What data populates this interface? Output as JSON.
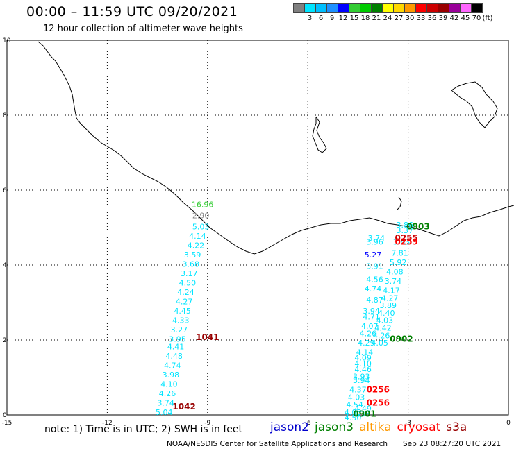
{
  "header": {
    "title": "00:00 – 11:59 UTC 09/20/2021",
    "subtitle": "12 hour collection of altimeter wave heights"
  },
  "color_scale": {
    "unit_label": "(ft)",
    "swatches": [
      {
        "color": "#808080",
        "label": ""
      },
      {
        "color": "#00e5ff",
        "label": "3"
      },
      {
        "color": "#00bfff",
        "label": "6"
      },
      {
        "color": "#1e90ff",
        "label": "9"
      },
      {
        "color": "#0000ff",
        "label": "12"
      },
      {
        "color": "#33cc33",
        "label": "15"
      },
      {
        "color": "#00cc00",
        "label": "18"
      },
      {
        "color": "#008000",
        "label": "21"
      },
      {
        "color": "#ffff00",
        "label": "24"
      },
      {
        "color": "#ffd700",
        "label": "27"
      },
      {
        "color": "#ff9900",
        "label": "30"
      },
      {
        "color": "#ff0000",
        "label": "33"
      },
      {
        "color": "#cc0000",
        "label": "36"
      },
      {
        "color": "#990000",
        "label": "39"
      },
      {
        "color": "#990099",
        "label": "42"
      },
      {
        "color": "#ff66ff",
        "label": "45"
      },
      {
        "color": "#000000",
        "label": "70"
      }
    ]
  },
  "axes": {
    "x_ticks": [
      "-15",
      "-12",
      "-9",
      "-6",
      "-3",
      "0"
    ],
    "y_ticks": [
      "10",
      "8",
      "6",
      "4",
      "2",
      "0"
    ],
    "x_range": [
      -15,
      0
    ],
    "y_range": [
      0,
      10
    ]
  },
  "track_values": {
    "west": [
      {
        "lon": -9.15,
        "lat": 5.55,
        "text": "16.96",
        "color": "#33cc33"
      },
      {
        "lon": -9.2,
        "lat": 5.25,
        "text": "2.90",
        "color": "#808080"
      },
      {
        "lon": -9.2,
        "lat": 4.95,
        "text": "5.03",
        "color": "#00e5ff"
      },
      {
        "lon": -9.3,
        "lat": 4.7,
        "text": "4.14",
        "color": "#00e5ff"
      },
      {
        "lon": -9.35,
        "lat": 4.45,
        "text": "4.22",
        "color": "#00e5ff"
      },
      {
        "lon": -9.45,
        "lat": 4.2,
        "text": "3.59",
        "color": "#00e5ff"
      },
      {
        "lon": -9.5,
        "lat": 3.95,
        "text": "3.68",
        "color": "#00e5ff"
      },
      {
        "lon": -9.55,
        "lat": 3.7,
        "text": "3.17",
        "color": "#00e5ff"
      },
      {
        "lon": -9.6,
        "lat": 3.45,
        "text": "4.50",
        "color": "#00e5ff"
      },
      {
        "lon": -9.65,
        "lat": 3.2,
        "text": "4.24",
        "color": "#00e5ff"
      },
      {
        "lon": -9.7,
        "lat": 2.95,
        "text": "4.27",
        "color": "#00e5ff"
      },
      {
        "lon": -9.75,
        "lat": 2.7,
        "text": "4.45",
        "color": "#00e5ff"
      },
      {
        "lon": -9.8,
        "lat": 2.45,
        "text": "4.33",
        "color": "#00e5ff"
      },
      {
        "lon": -9.85,
        "lat": 2.2,
        "text": "3.27",
        "color": "#00e5ff"
      },
      {
        "lon": -9.9,
        "lat": 1.95,
        "text": "3.95",
        "color": "#00e5ff"
      },
      {
        "lon": -9.95,
        "lat": 1.75,
        "text": "4.41",
        "color": "#00e5ff"
      },
      {
        "lon": -10.0,
        "lat": 1.5,
        "text": "4.48",
        "color": "#00e5ff"
      },
      {
        "lon": -10.05,
        "lat": 1.25,
        "text": "4.74",
        "color": "#00e5ff"
      },
      {
        "lon": -10.1,
        "lat": 1.0,
        "text": "3.98",
        "color": "#00e5ff"
      },
      {
        "lon": -10.15,
        "lat": 0.75,
        "text": "4.10",
        "color": "#00e5ff"
      },
      {
        "lon": -10.2,
        "lat": 0.5,
        "text": "4.26",
        "color": "#00e5ff"
      },
      {
        "lon": -10.25,
        "lat": 0.25,
        "text": "3.74",
        "color": "#00e5ff"
      },
      {
        "lon": -10.3,
        "lat": 0.0,
        "text": "5.04",
        "color": "#00e5ff"
      }
    ],
    "east_b": [
      {
        "lon": -3.1,
        "lat": 5.0,
        "text": "3.86",
        "color": "#00e5ff"
      },
      {
        "lon": -3.1,
        "lat": 4.85,
        "text": "3.37",
        "color": "#00e5ff"
      },
      {
        "lon": -3.2,
        "lat": 4.55,
        "text": "3.63",
        "color": "#00e5ff"
      },
      {
        "lon": -3.25,
        "lat": 4.25,
        "text": "7.81",
        "color": "#00e5ff"
      },
      {
        "lon": -3.3,
        "lat": 4.0,
        "text": "5.92",
        "color": "#00e5ff"
      },
      {
        "lon": -3.4,
        "lat": 3.75,
        "text": "4.08",
        "color": "#00e5ff"
      },
      {
        "lon": -3.45,
        "lat": 3.5,
        "text": "3.74",
        "color": "#00e5ff"
      },
      {
        "lon": -3.5,
        "lat": 3.25,
        "text": "4.17",
        "color": "#00e5ff"
      },
      {
        "lon": -3.55,
        "lat": 3.05,
        "text": "4.27",
        "color": "#00e5ff"
      },
      {
        "lon": -3.6,
        "lat": 2.85,
        "text": "3.89",
        "color": "#00e5ff"
      },
      {
        "lon": -3.65,
        "lat": 2.65,
        "text": "4.40",
        "color": "#00e5ff"
      },
      {
        "lon": -3.7,
        "lat": 2.45,
        "text": "4.03",
        "color": "#00e5ff"
      },
      {
        "lon": -3.75,
        "lat": 2.25,
        "text": "4.42",
        "color": "#00e5ff"
      },
      {
        "lon": -3.8,
        "lat": 2.05,
        "text": "4.26",
        "color": "#00e5ff"
      },
      {
        "lon": -3.85,
        "lat": 1.85,
        "text": "4.05",
        "color": "#00e5ff"
      }
    ],
    "east_a": [
      {
        "lon": -3.95,
        "lat": 4.65,
        "text": "3.74",
        "color": "#00e5ff"
      },
      {
        "lon": -4.0,
        "lat": 4.55,
        "text": "3.96",
        "color": "#00e5ff"
      },
      {
        "lon": -4.05,
        "lat": 4.2,
        "text": "5.27",
        "color": "#0000ff"
      },
      {
        "lon": -4.0,
        "lat": 3.9,
        "text": "3.91",
        "color": "#00e5ff"
      },
      {
        "lon": -4.0,
        "lat": 3.55,
        "text": "4.56",
        "color": "#00e5ff"
      },
      {
        "lon": -4.05,
        "lat": 3.3,
        "text": "4.74",
        "color": "#00e5ff"
      },
      {
        "lon": -4.0,
        "lat": 3.0,
        "text": "4.87",
        "color": "#00e5ff"
      },
      {
        "lon": -4.1,
        "lat": 2.7,
        "text": "3.94",
        "color": "#00e5ff"
      },
      {
        "lon": -4.1,
        "lat": 2.55,
        "text": "4.71",
        "color": "#00e5ff"
      },
      {
        "lon": -4.15,
        "lat": 2.3,
        "text": "4.07",
        "color": "#00e5ff"
      },
      {
        "lon": -4.2,
        "lat": 2.1,
        "text": "4.26",
        "color": "#00e5ff"
      },
      {
        "lon": -4.25,
        "lat": 1.85,
        "text": "4.29",
        "color": "#00e5ff"
      },
      {
        "lon": -4.3,
        "lat": 1.6,
        "text": "4.14",
        "color": "#00e5ff"
      },
      {
        "lon": -4.35,
        "lat": 1.45,
        "text": "4.09",
        "color": "#00e5ff"
      },
      {
        "lon": -4.35,
        "lat": 1.3,
        "text": "4.10",
        "color": "#00e5ff"
      },
      {
        "lon": -4.35,
        "lat": 1.15,
        "text": "4.46",
        "color": "#00e5ff"
      },
      {
        "lon": -4.4,
        "lat": 0.95,
        "text": "3.93",
        "color": "#00e5ff"
      },
      {
        "lon": -4.4,
        "lat": 0.85,
        "text": "3.94",
        "color": "#00e5ff"
      },
      {
        "lon": -4.5,
        "lat": 0.6,
        "text": "4.37",
        "color": "#00e5ff"
      },
      {
        "lon": -4.55,
        "lat": 0.4,
        "text": "4.03",
        "color": "#00e5ff"
      },
      {
        "lon": -4.6,
        "lat": 0.2,
        "text": "4.54",
        "color": "#00e5ff"
      },
      {
        "lon": -4.65,
        "lat": 0.0,
        "text": "4.03",
        "color": "#00e5ff"
      },
      {
        "lon": -4.65,
        "lat": -0.15,
        "text": "4.50",
        "color": "#00e5ff"
      },
      {
        "lon": -4.35,
        "lat": 0.1,
        "text": "4.49",
        "color": "#00e5ff"
      },
      {
        "lon": -4.4,
        "lat": -0.05,
        "text": "4.36",
        "color": "#00e5ff"
      }
    ]
  },
  "pass_times": [
    {
      "lon": -9.0,
      "lat": 2.0,
      "text": "1041",
      "color": "#990000"
    },
    {
      "lon": -9.7,
      "lat": 0.15,
      "text": "1042",
      "color": "#990000"
    },
    {
      "lon": -3.05,
      "lat": 4.65,
      "text": "0255",
      "color": "#cc0000"
    },
    {
      "lon": -3.05,
      "lat": 4.55,
      "text": "0259",
      "color": "#ff0000"
    },
    {
      "lon": -2.7,
      "lat": 4.95,
      "text": "0903",
      "color": "#008000"
    },
    {
      "lon": -3.2,
      "lat": 1.95,
      "text": "0902",
      "color": "#008000"
    },
    {
      "lon": -3.9,
      "lat": 0.6,
      "text": "0256",
      "color": "#ff0000"
    },
    {
      "lon": -3.9,
      "lat": 0.25,
      "text": "0256",
      "color": "#ff0000"
    },
    {
      "lon": -4.3,
      "lat": -0.05,
      "text": "0901",
      "color": "#008000"
    }
  ],
  "footer": {
    "note": "note: 1) Time is in UTC; 2) SWH is in feet",
    "satellites": [
      {
        "name": "jason2",
        "color": "#0000cc"
      },
      {
        "name": "jason3",
        "color": "#008000"
      },
      {
        "name": "altika",
        "color": "#ff9900"
      },
      {
        "name": "cryosat",
        "color": "#ff0000"
      },
      {
        "name": "s3a",
        "color": "#990000"
      }
    ],
    "credit": "NOAA/NESDIS Center for Satellite Applications and Research",
    "timestamp": "Sep 23 08:27:20 UTC 2021"
  }
}
